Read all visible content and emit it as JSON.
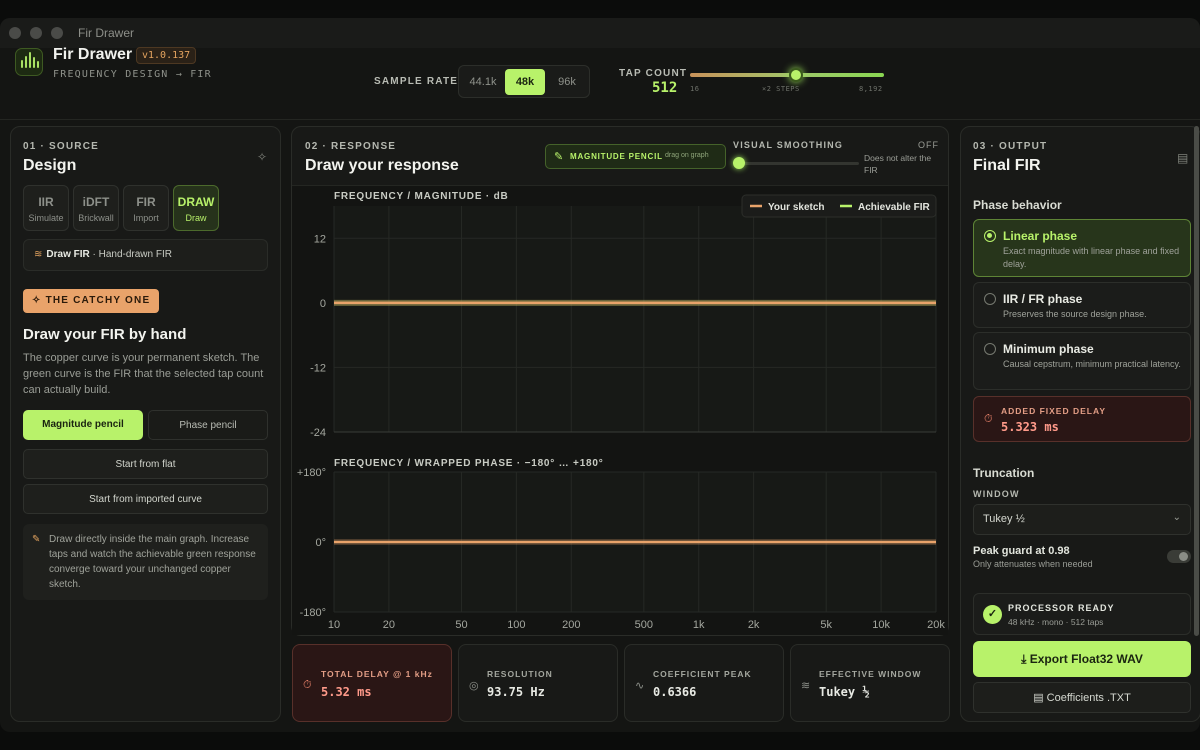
{
  "window": {
    "title": "Fir Drawer"
  },
  "header": {
    "app_name": "Fir Drawer",
    "version": "v1.0.137",
    "subtitle": "FREQUENCY DESIGN → FIR",
    "sample_rate": {
      "label": "SAMPLE RATE",
      "options": [
        "44.1k",
        "48k",
        "96k"
      ],
      "selected": "48k"
    },
    "tap_count": {
      "label": "TAP COUNT",
      "value": "512",
      "min_label": "16",
      "mid_label": "×2 STEPS",
      "max_label": "8,192"
    }
  },
  "source": {
    "step": "01 · SOURCE",
    "title": "Design",
    "buttons": [
      {
        "short": "IIR",
        "label": "Simulate"
      },
      {
        "short": "iDFT",
        "label": "Brickwall"
      },
      {
        "short": "FIR",
        "label": "Import"
      },
      {
        "short": "DRAW",
        "label": "Draw"
      }
    ],
    "mode": {
      "name": "Draw FIR",
      "desc": " · Hand-drawn FIR"
    },
    "badge": "THE CATCHY ONE",
    "heading": "Draw your FIR by hand",
    "description": "The copper curve is your permanent sketch. The green curve is the FIR that the selected tap count can actually build.",
    "magnitude_pencil": "Magnitude pencil",
    "phase_pencil": "Phase pencil",
    "start_flat": "Start from flat",
    "start_imported": "Start from imported curve",
    "tip": "Draw directly inside the main graph. Increase taps and watch the achievable green response converge toward your unchanged copper sketch."
  },
  "response": {
    "step": "02 · RESPONSE",
    "title": "Draw your response",
    "pencil_label": "MAGNITUDE PENCIL",
    "pencil_hint": "drag on graph",
    "smoothing_label": "VISUAL SMOOTHING",
    "smoothing_value": "OFF",
    "smoothing_note": "Does not alter the FIR",
    "legend": {
      "sketch": "Your sketch",
      "achievable": "Achievable FIR"
    },
    "magnitude_title": "FREQUENCY / MAGNITUDE · dB",
    "phase_title": "FREQUENCY / WRAPPED PHASE · −180° … +180°",
    "x_ticks": [
      "10",
      "20",
      "50",
      "100",
      "200",
      "500",
      "1k",
      "2k",
      "5k",
      "10k",
      "20k"
    ],
    "mag_ticks": [
      "12",
      "0",
      "-12",
      "-24"
    ],
    "phase_ticks": [
      "+180°",
      "0°",
      "-180°"
    ]
  },
  "chart_data": [
    {
      "type": "line",
      "title": "FREQUENCY / MAGNITUDE · dB",
      "x_scale": "log",
      "xlim": [
        10,
        20000
      ],
      "ylim": [
        -24,
        18
      ],
      "grid": true,
      "legend": "top-right",
      "series": [
        {
          "name": "Your sketch",
          "color": "#e9a36a",
          "x": [
            10,
            20000
          ],
          "y": [
            0,
            0
          ]
        },
        {
          "name": "Achievable FIR",
          "color": "#b8f26a",
          "x": [
            10,
            20000
          ],
          "y": [
            0,
            0
          ]
        }
      ]
    },
    {
      "type": "line",
      "title": "FREQUENCY / WRAPPED PHASE · −180° … +180°",
      "x_scale": "log",
      "xlim": [
        10,
        20000
      ],
      "ylim": [
        -180,
        180
      ],
      "grid": true,
      "series": [
        {
          "name": "Your sketch",
          "color": "#e9a36a",
          "x": [
            10,
            20000
          ],
          "y": [
            0,
            0
          ]
        }
      ]
    }
  ],
  "stats": [
    {
      "label": "TOTAL DELAY @ 1 kHz",
      "value": "5.32 ms",
      "icon": "timer-icon"
    },
    {
      "label": "RESOLUTION",
      "value": "93.75 Hz",
      "icon": "target-icon"
    },
    {
      "label": "COEFFICIENT PEAK",
      "value": "0.6366",
      "icon": "waveform-icon"
    },
    {
      "label": "EFFECTIVE WINDOW",
      "value": "Tukey ½",
      "icon": "window-icon"
    }
  ],
  "output": {
    "step": "03 · OUTPUT",
    "title": "Final FIR",
    "phase_label": "Phase behavior",
    "phase_options": [
      {
        "title": "Linear phase",
        "desc": "Exact magnitude with linear phase and fixed delay."
      },
      {
        "title": "IIR / FR phase",
        "desc": "Preserves the source design phase."
      },
      {
        "title": "Minimum phase",
        "desc": "Causal cepstrum, minimum practical latency."
      }
    ],
    "delay_label": "ADDED FIXED DELAY",
    "delay_value": "5.323 ms",
    "truncation": "Truncation",
    "window_label": "WINDOW",
    "window_value": "Tukey ½",
    "peak_guard": "Peak guard at 0.98",
    "peak_guard_sub": "Only attenuates when needed",
    "ready_label": "PROCESSOR READY",
    "ready_sub": "48 kHz · mono · 512 taps",
    "export": "Export Float32 WAV",
    "coefficients": "Coefficients .TXT"
  },
  "colors": {
    "accent": "#b8f26a",
    "copper": "#e9a36a",
    "alert": "#ff9a8a"
  }
}
